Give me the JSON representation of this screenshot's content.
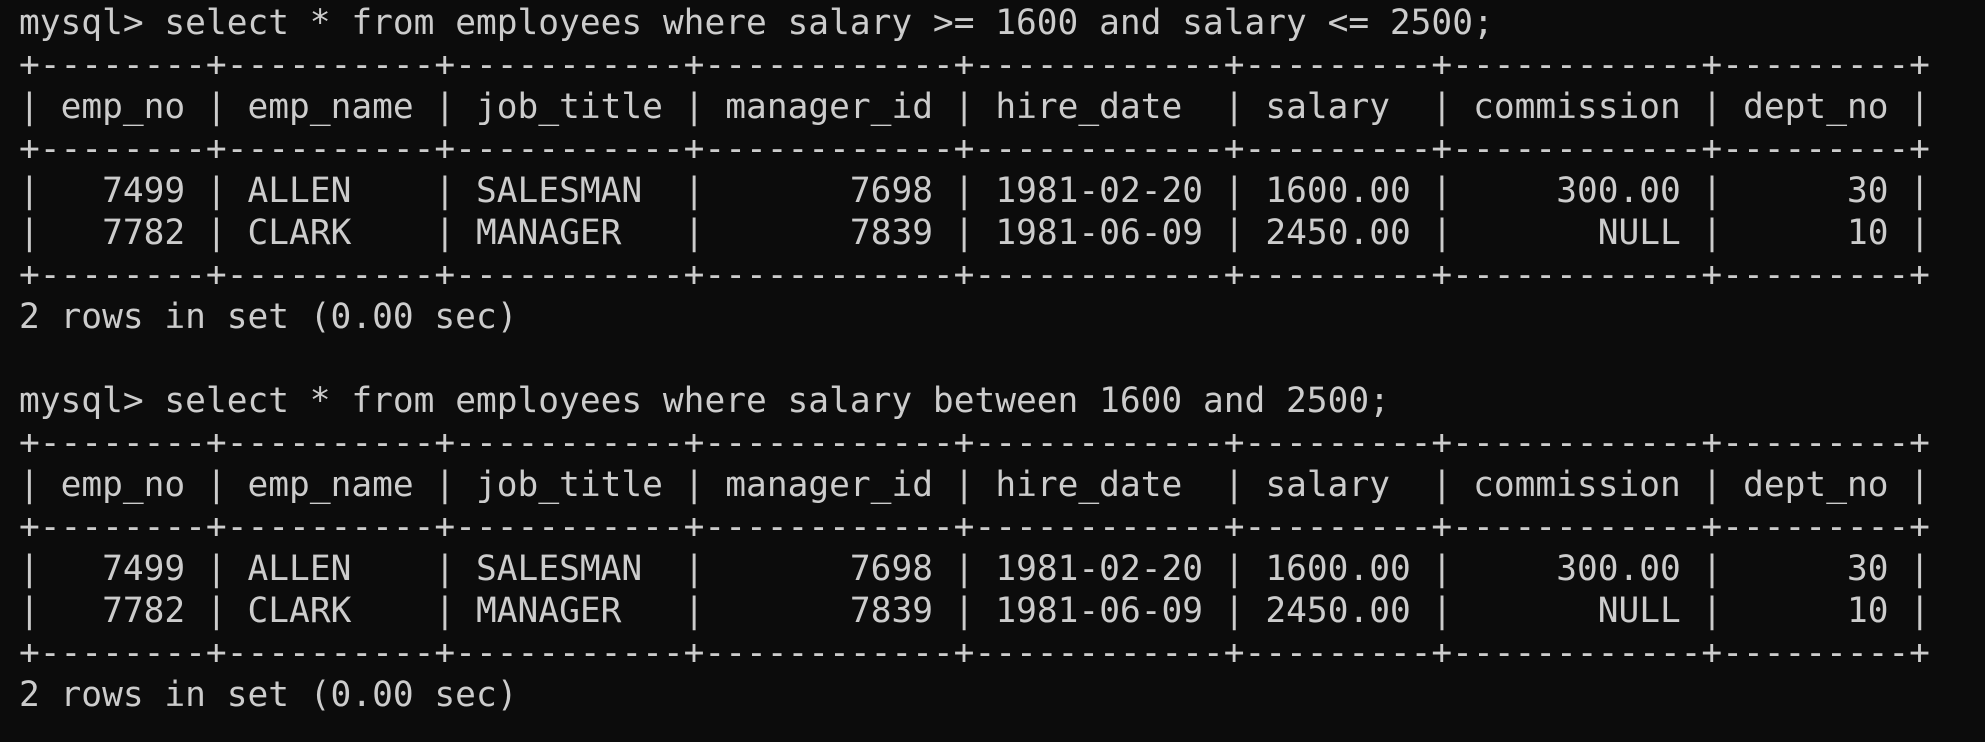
{
  "sessions": [
    {
      "prompt": "mysql>",
      "query": "select * from employees where salary >= 1600 and salary <= 2500;",
      "table": {
        "columns": [
          "emp_no",
          "emp_name",
          "job_title",
          "manager_id",
          "hire_date",
          "salary",
          "commission",
          "dept_no"
        ],
        "rows": [
          [
            "7499",
            "ALLEN",
            "SALESMAN",
            "7698",
            "1981-02-20",
            "1600.00",
            "300.00",
            "30"
          ],
          [
            "7782",
            "CLARK",
            "MANAGER",
            "7839",
            "1981-06-09",
            "2450.00",
            "NULL",
            "10"
          ]
        ]
      },
      "footer": "2 rows in set (0.00 sec)"
    },
    {
      "prompt": "mysql>",
      "query": "select * from employees where salary between 1600 and 2500;",
      "table": {
        "columns": [
          "emp_no",
          "emp_name",
          "job_title",
          "manager_id",
          "hire_date",
          "salary",
          "commission",
          "dept_no"
        ],
        "rows": [
          [
            "7499",
            "ALLEN",
            "SALESMAN",
            "7698",
            "1981-02-20",
            "1600.00",
            "300.00",
            "30"
          ],
          [
            "7782",
            "CLARK",
            "MANAGER",
            "7839",
            "1981-06-09",
            "2450.00",
            "NULL",
            "10"
          ]
        ]
      },
      "footer": "2 rows in set (0.00 sec)"
    }
  ]
}
